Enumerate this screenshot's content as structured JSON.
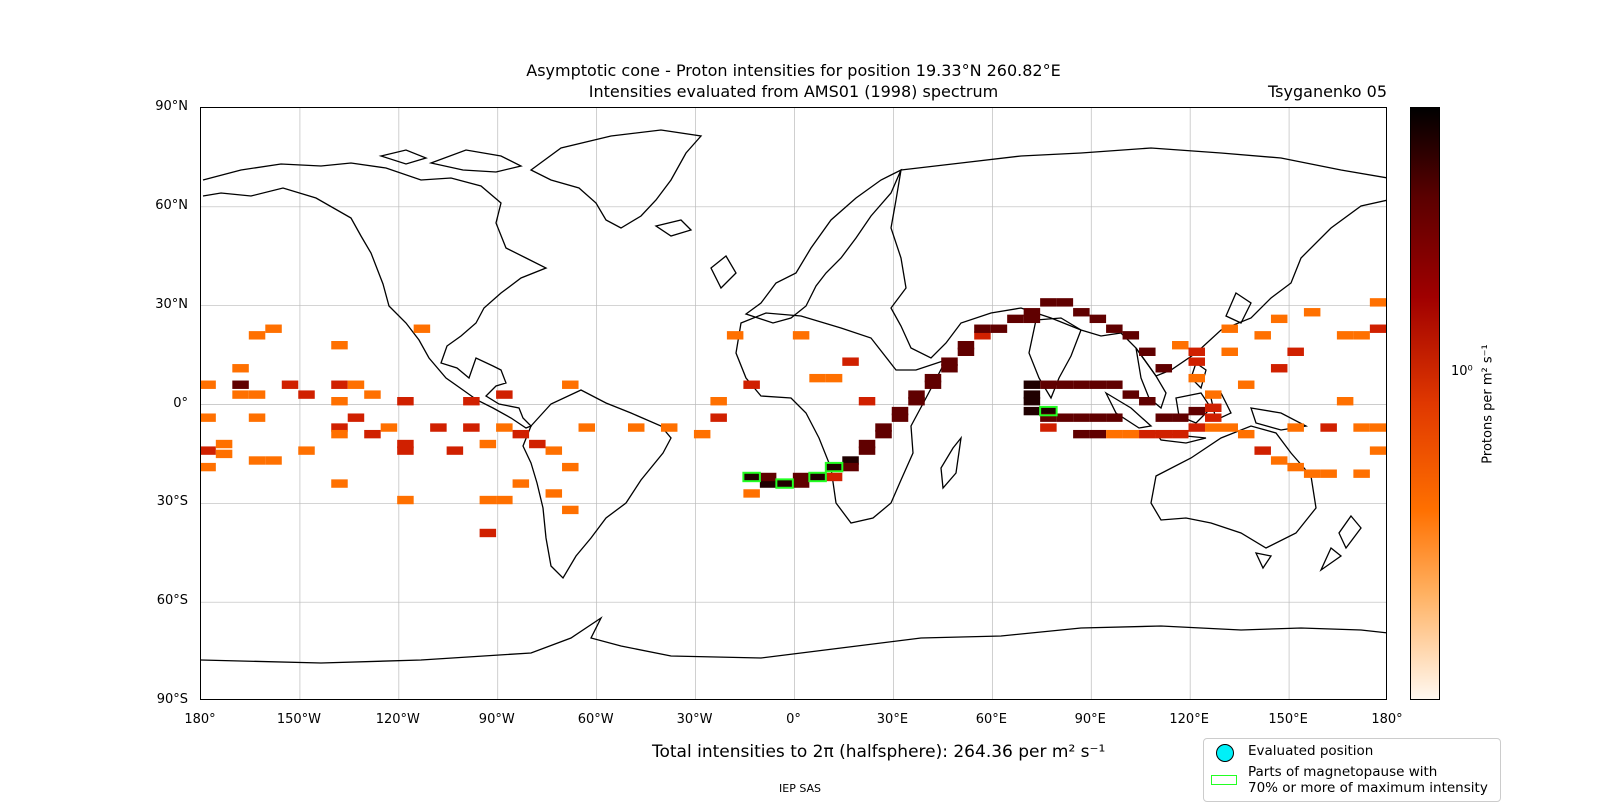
{
  "title_line1": "Asymptotic cone - Proton intensities for position 19.33°N 260.82°E",
  "title_line2": "Intensities evaluated from AMS01 (1998) spectrum",
  "model_label": "Tsyganenko 05",
  "lat_ticks": [
    "90°N",
    "60°N",
    "30°N",
    "0°",
    "30°S",
    "60°S",
    "90°S"
  ],
  "lon_ticks": [
    "180°",
    "150°W",
    "120°W",
    "90°W",
    "60°W",
    "30°W",
    "0°",
    "30°E",
    "60°E",
    "90°E",
    "120°E",
    "150°E",
    "180°"
  ],
  "colorbar": {
    "label": "Protons per m² s⁻¹",
    "tick": "10⁰"
  },
  "total_text": "Total intensities to 2π (halfsphere): 264.36 per m² s⁻¹",
  "legend": {
    "evaluated": "Evaluated position",
    "magnetopause_line1": "Parts of magnetopause with",
    "magnetopause_line2": "70% or more of maximum intensity"
  },
  "footer": "IEP SAS",
  "colors": {
    "low": "#ff7000",
    "mid": "#d02000",
    "high": "#600000",
    "max": "#200000",
    "highlight": "#22ff22",
    "evaluated": "#00f0f8"
  },
  "chart_data": {
    "type": "heatmap",
    "xlim": [
      -180,
      180
    ],
    "ylim": [
      -90,
      90
    ],
    "value_scale": "log",
    "cells": [
      [
        -178,
        6,
        "o"
      ],
      [
        -178,
        -4,
        "o"
      ],
      [
        -178,
        -14,
        "r"
      ],
      [
        -178,
        -19,
        "o"
      ],
      [
        -173,
        -12,
        "o"
      ],
      [
        -173,
        -15,
        "o"
      ],
      [
        -168,
        11,
        "o"
      ],
      [
        -168,
        6,
        "d"
      ],
      [
        -168,
        3,
        "o"
      ],
      [
        -163,
        3,
        "o"
      ],
      [
        -163,
        21,
        "o"
      ],
      [
        -163,
        -4,
        "o"
      ],
      [
        -163,
        -17,
        "o"
      ],
      [
        -158,
        -17,
        "o"
      ],
      [
        -158,
        23,
        "o"
      ],
      [
        -153,
        6,
        "r"
      ],
      [
        -148,
        3,
        "r"
      ],
      [
        -148,
        -14,
        "o"
      ],
      [
        -138,
        18,
        "o"
      ],
      [
        -138,
        6,
        "r"
      ],
      [
        -138,
        1,
        "o"
      ],
      [
        -138,
        -7,
        "r"
      ],
      [
        -138,
        -9,
        "o"
      ],
      [
        -138,
        -24,
        "o"
      ],
      [
        -133,
        6,
        "o"
      ],
      [
        -133,
        -4,
        "r"
      ],
      [
        -128,
        3,
        "o"
      ],
      [
        -128,
        -9,
        "r"
      ],
      [
        -123,
        -7,
        "o"
      ],
      [
        -118,
        1,
        "r"
      ],
      [
        -118,
        -12,
        "r"
      ],
      [
        -118,
        -14,
        "r"
      ],
      [
        -118,
        -29,
        "o"
      ],
      [
        -113,
        23,
        "o"
      ],
      [
        -108,
        -7,
        "r"
      ],
      [
        -103,
        -14,
        "r"
      ],
      [
        -98,
        1,
        "r"
      ],
      [
        -98,
        -7,
        "r"
      ],
      [
        -93,
        -12,
        "o"
      ],
      [
        -93,
        -29,
        "o"
      ],
      [
        -93,
        -39,
        "r"
      ],
      [
        -88,
        3,
        "r"
      ],
      [
        -88,
        -7,
        "o"
      ],
      [
        -88,
        -29,
        "o"
      ],
      [
        -83,
        -9,
        "r"
      ],
      [
        -83,
        -24,
        "o"
      ],
      [
        -78,
        -12,
        "r"
      ],
      [
        -73,
        -14,
        "o"
      ],
      [
        -73,
        -27,
        "o"
      ],
      [
        -68,
        6,
        "o"
      ],
      [
        -68,
        -19,
        "o"
      ],
      [
        -68,
        -32,
        "o"
      ],
      [
        -63,
        -7,
        "o"
      ],
      [
        -38,
        -7,
        "o"
      ],
      [
        -28,
        -9,
        "o"
      ],
      [
        -23,
        1,
        "o"
      ],
      [
        -23,
        -4,
        "r"
      ],
      [
        -18,
        21,
        "o"
      ],
      [
        -13,
        -27,
        "o"
      ],
      [
        -13,
        -22,
        "x"
      ],
      [
        -8,
        -24,
        "x"
      ],
      [
        -8,
        -22,
        "d"
      ],
      [
        -3,
        -24,
        "x"
      ],
      [
        2,
        21,
        "o"
      ],
      [
        2,
        -22,
        "d"
      ],
      [
        2,
        -24,
        "d"
      ],
      [
        7,
        -22,
        "x"
      ],
      [
        12,
        -19,
        "x"
      ],
      [
        12,
        -22,
        "r"
      ],
      [
        17,
        -17,
        "x"
      ],
      [
        17,
        -19,
        "d"
      ],
      [
        22,
        -12,
        "d"
      ],
      [
        22,
        -14,
        "d"
      ],
      [
        27,
        -9,
        "d"
      ],
      [
        27,
        -7,
        "d"
      ],
      [
        32,
        -4,
        "d"
      ],
      [
        32,
        -2,
        "d"
      ],
      [
        37,
        1,
        "d"
      ],
      [
        37,
        3,
        "d"
      ],
      [
        42,
        6,
        "d"
      ],
      [
        42,
        8,
        "d"
      ],
      [
        47,
        11,
        "d"
      ],
      [
        47,
        13,
        "d"
      ],
      [
        52,
        16,
        "d"
      ],
      [
        52,
        18,
        "d"
      ],
      [
        57,
        21,
        "r"
      ],
      [
        57,
        23,
        "d"
      ],
      [
        62,
        23,
        "d"
      ],
      [
        67,
        26,
        "d"
      ],
      [
        72,
        26,
        "d"
      ],
      [
        72,
        28,
        "d"
      ],
      [
        77,
        31,
        "d"
      ],
      [
        82,
        31,
        "d"
      ],
      [
        87,
        28,
        "d"
      ],
      [
        92,
        26,
        "d"
      ],
      [
        97,
        23,
        "d"
      ],
      [
        102,
        21,
        "d"
      ],
      [
        107,
        16,
        "d"
      ],
      [
        112,
        11,
        "d"
      ],
      [
        72,
        6,
        "x"
      ],
      [
        72,
        3,
        "x"
      ],
      [
        72,
        1,
        "x"
      ],
      [
        72,
        -2,
        "x"
      ],
      [
        77,
        6,
        "d"
      ],
      [
        77,
        -2,
        "x"
      ],
      [
        77,
        -4,
        "d"
      ],
      [
        77,
        -7,
        "r"
      ],
      [
        82,
        6,
        "d"
      ],
      [
        82,
        -4,
        "d"
      ],
      [
        87,
        6,
        "d"
      ],
      [
        87,
        -4,
        "d"
      ],
      [
        87,
        -9,
        "d"
      ],
      [
        92,
        6,
        "d"
      ],
      [
        92,
        -4,
        "d"
      ],
      [
        92,
        -9,
        "d"
      ],
      [
        97,
        6,
        "d"
      ],
      [
        97,
        -4,
        "d"
      ],
      [
        97,
        -9,
        "o"
      ],
      [
        102,
        3,
        "d"
      ],
      [
        102,
        -9,
        "o"
      ],
      [
        107,
        1,
        "d"
      ],
      [
        107,
        -9,
        "r"
      ],
      [
        112,
        -4,
        "d"
      ],
      [
        112,
        -9,
        "r"
      ],
      [
        117,
        -4,
        "d"
      ],
      [
        117,
        -9,
        "r"
      ],
      [
        122,
        -2,
        "d"
      ],
      [
        122,
        -7,
        "r"
      ],
      [
        127,
        -4,
        "r"
      ],
      [
        127,
        -7,
        "o"
      ],
      [
        132,
        -7,
        "o"
      ],
      [
        137,
        -9,
        "o"
      ],
      [
        142,
        -14,
        "r"
      ],
      [
        147,
        -17,
        "o"
      ],
      [
        152,
        -19,
        "o"
      ],
      [
        157,
        -21,
        "o"
      ],
      [
        162,
        -21,
        "o"
      ],
      [
        172,
        -21,
        "o"
      ],
      [
        117,
        18,
        "o"
      ],
      [
        122,
        16,
        "r"
      ],
      [
        122,
        13,
        "r"
      ],
      [
        122,
        8,
        "o"
      ],
      [
        127,
        3,
        "o"
      ],
      [
        127,
        -1,
        "r"
      ],
      [
        132,
        23,
        "o"
      ],
      [
        132,
        16,
        "o"
      ],
      [
        137,
        6,
        "o"
      ],
      [
        142,
        21,
        "o"
      ],
      [
        147,
        26,
        "o"
      ],
      [
        147,
        11,
        "r"
      ],
      [
        152,
        16,
        "r"
      ],
      [
        157,
        28,
        "o"
      ],
      [
        167,
        21,
        "o"
      ],
      [
        172,
        21,
        "o"
      ],
      [
        167,
        1,
        "o"
      ],
      [
        172,
        -7,
        "o"
      ],
      [
        177,
        -7,
        "o"
      ],
      [
        177,
        -14,
        "o"
      ],
      [
        177,
        23,
        "r"
      ],
      [
        177,
        31,
        "o"
      ],
      [
        162,
        -7,
        "r"
      ],
      [
        152,
        -7,
        "o"
      ],
      [
        -48,
        -7,
        "o"
      ],
      [
        -13,
        6,
        "r"
      ],
      [
        7,
        8,
        "o"
      ],
      [
        12,
        8,
        "o"
      ],
      [
        17,
        13,
        "r"
      ],
      [
        22,
        1,
        "r"
      ]
    ],
    "highlighted_cells": [
      [
        -13,
        -22
      ],
      [
        -3,
        -24
      ],
      [
        7,
        -22
      ],
      [
        12,
        -19
      ],
      [
        77,
        -2
      ]
    ]
  }
}
